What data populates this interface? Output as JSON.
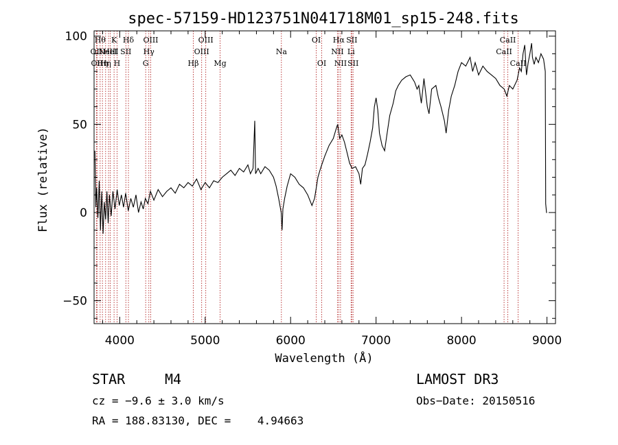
{
  "chart_data": {
    "type": "line",
    "title": "spec-57159-HD123751N041718M01_sp15-248.fits",
    "xlabel": "Wavelength (Å)",
    "ylabel": "Flux (relative)",
    "xlim": [
      3700,
      9100
    ],
    "ylim": [
      -63,
      103
    ],
    "xticks": [
      4000,
      5000,
      6000,
      7000,
      8000,
      9000
    ],
    "xtick_labels": [
      "4000",
      "5000",
      "6000",
      "7000",
      "8000",
      "9000"
    ],
    "yticks": [
      -50,
      0,
      50,
      100
    ],
    "ytick_labels": [
      "−50",
      "0",
      "50",
      "100"
    ],
    "grid": false,
    "series": [
      {
        "name": "flux",
        "color": "#000000",
        "points": [
          [
            3710,
            35
          ],
          [
            3720,
            3
          ],
          [
            3730,
            14
          ],
          [
            3745,
            -3
          ],
          [
            3760,
            18
          ],
          [
            3775,
            -10
          ],
          [
            3790,
            12
          ],
          [
            3805,
            -12
          ],
          [
            3820,
            6
          ],
          [
            3835,
            -4
          ],
          [
            3850,
            12
          ],
          [
            3865,
            -6
          ],
          [
            3880,
            10
          ],
          [
            3900,
            -2
          ],
          [
            3920,
            12
          ],
          [
            3945,
            2
          ],
          [
            3970,
            13
          ],
          [
            3995,
            4
          ],
          [
            4020,
            10
          ],
          [
            4045,
            3
          ],
          [
            4070,
            11
          ],
          [
            4100,
            1
          ],
          [
            4130,
            8
          ],
          [
            4160,
            3
          ],
          [
            4190,
            10
          ],
          [
            4220,
            0
          ],
          [
            4250,
            6
          ],
          [
            4275,
            2
          ],
          [
            4300,
            8
          ],
          [
            4330,
            5
          ],
          [
            4360,
            12
          ],
          [
            4400,
            7
          ],
          [
            4450,
            13
          ],
          [
            4500,
            9
          ],
          [
            4550,
            12
          ],
          [
            4600,
            14
          ],
          [
            4650,
            11
          ],
          [
            4700,
            16
          ],
          [
            4750,
            14
          ],
          [
            4800,
            17
          ],
          [
            4850,
            15
          ],
          [
            4900,
            19
          ],
          [
            4950,
            13
          ],
          [
            5000,
            17
          ],
          [
            5050,
            14
          ],
          [
            5100,
            18
          ],
          [
            5150,
            17
          ],
          [
            5200,
            20
          ],
          [
            5250,
            22
          ],
          [
            5300,
            24
          ],
          [
            5350,
            21
          ],
          [
            5400,
            25
          ],
          [
            5450,
            23
          ],
          [
            5500,
            27
          ],
          [
            5530,
            22
          ],
          [
            5560,
            25
          ],
          [
            5580,
            52
          ],
          [
            5590,
            22
          ],
          [
            5620,
            25
          ],
          [
            5650,
            22
          ],
          [
            5700,
            26
          ],
          [
            5750,
            24
          ],
          [
            5800,
            20
          ],
          [
            5830,
            15
          ],
          [
            5860,
            8
          ],
          [
            5890,
            0
          ],
          [
            5900,
            -10
          ],
          [
            5910,
            2
          ],
          [
            5930,
            8
          ],
          [
            5960,
            15
          ],
          [
            6000,
            22
          ],
          [
            6050,
            20
          ],
          [
            6100,
            16
          ],
          [
            6150,
            14
          ],
          [
            6200,
            10
          ],
          [
            6250,
            4
          ],
          [
            6280,
            8
          ],
          [
            6300,
            14
          ],
          [
            6320,
            20
          ],
          [
            6350,
            25
          ],
          [
            6400,
            32
          ],
          [
            6450,
            38
          ],
          [
            6500,
            42
          ],
          [
            6530,
            47
          ],
          [
            6550,
            50
          ],
          [
            6575,
            42
          ],
          [
            6600,
            44
          ],
          [
            6630,
            40
          ],
          [
            6660,
            34
          ],
          [
            6690,
            28
          ],
          [
            6720,
            25
          ],
          [
            6760,
            26
          ],
          [
            6800,
            22
          ],
          [
            6820,
            16
          ],
          [
            6840,
            25
          ],
          [
            6870,
            27
          ],
          [
            6900,
            33
          ],
          [
            6930,
            40
          ],
          [
            6960,
            48
          ],
          [
            6980,
            60
          ],
          [
            7000,
            65
          ],
          [
            7020,
            58
          ],
          [
            7040,
            45
          ],
          [
            7070,
            38
          ],
          [
            7100,
            35
          ],
          [
            7130,
            45
          ],
          [
            7160,
            55
          ],
          [
            7200,
            62
          ],
          [
            7230,
            69
          ],
          [
            7260,
            72
          ],
          [
            7300,
            75
          ],
          [
            7350,
            77
          ],
          [
            7400,
            78
          ],
          [
            7450,
            74
          ],
          [
            7480,
            70
          ],
          [
            7500,
            72
          ],
          [
            7530,
            62
          ],
          [
            7560,
            76
          ],
          [
            7600,
            60
          ],
          [
            7620,
            56
          ],
          [
            7650,
            70
          ],
          [
            7700,
            72
          ],
          [
            7730,
            65
          ],
          [
            7760,
            60
          ],
          [
            7800,
            52
          ],
          [
            7820,
            45
          ],
          [
            7850,
            58
          ],
          [
            7880,
            66
          ],
          [
            7920,
            72
          ],
          [
            7960,
            80
          ],
          [
            8000,
            85
          ],
          [
            8050,
            83
          ],
          [
            8100,
            88
          ],
          [
            8130,
            80
          ],
          [
            8160,
            85
          ],
          [
            8200,
            78
          ],
          [
            8250,
            83
          ],
          [
            8300,
            80
          ],
          [
            8350,
            78
          ],
          [
            8400,
            76
          ],
          [
            8450,
            72
          ],
          [
            8500,
            70
          ],
          [
            8530,
            66
          ],
          [
            8560,
            72
          ],
          [
            8600,
            70
          ],
          [
            8650,
            75
          ],
          [
            8680,
            82
          ],
          [
            8700,
            80
          ],
          [
            8720,
            90
          ],
          [
            8740,
            95
          ],
          [
            8760,
            78
          ],
          [
            8780,
            85
          ],
          [
            8800,
            90
          ],
          [
            8820,
            96
          ],
          [
            8830,
            88
          ],
          [
            8850,
            84
          ],
          [
            8870,
            88
          ],
          [
            8900,
            85
          ],
          [
            8930,
            90
          ],
          [
            8960,
            87
          ],
          [
            8980,
            80
          ],
          [
            8985,
            5
          ],
          [
            8995,
            0
          ],
          [
            9000,
            0
          ]
        ]
      }
    ],
    "line_markers": [
      {
        "wave": 3727,
        "label": "OII",
        "row": 2
      },
      {
        "wave": 3735,
        "label": "OII",
        "row": 3
      },
      {
        "wave": 3771,
        "label": "Hθ",
        "row": 1
      },
      {
        "wave": 3798,
        "label": "Hη",
        "row": 3
      },
      {
        "wave": 3835,
        "label": "Hη",
        "row": 3
      },
      {
        "wave": 3869,
        "label": "NeIII",
        "row": 2
      },
      {
        "wave": 3889,
        "label": "HeI",
        "row": 2
      },
      {
        "wave": 3934,
        "label": "K",
        "row": 1
      },
      {
        "wave": 3969,
        "label": "H",
        "row": 3
      },
      {
        "wave": 4072,
        "label": "SII",
        "row": 2
      },
      {
        "wave": 4102,
        "label": "Hδ",
        "row": 1
      },
      {
        "wave": 4304,
        "label": "G",
        "row": 3
      },
      {
        "wave": 4341,
        "label": "Hγ",
        "row": 2
      },
      {
        "wave": 4363,
        "label": "OIII",
        "row": 1
      },
      {
        "wave": 4861,
        "label": "Hβ",
        "row": 3
      },
      {
        "wave": 4959,
        "label": "OIII",
        "row": 2
      },
      {
        "wave": 5007,
        "label": "OIII",
        "row": 1
      },
      {
        "wave": 5175,
        "label": "Mg",
        "row": 3
      },
      {
        "wave": 5892,
        "label": "Na",
        "row": 2
      },
      {
        "wave": 6300,
        "label": "OI",
        "row": 1
      },
      {
        "wave": 6364,
        "label": "OI",
        "row": 3
      },
      {
        "wave": 6548,
        "label": "NII",
        "row": 2
      },
      {
        "wave": 6563,
        "label": "Hα",
        "row": 1
      },
      {
        "wave": 6584,
        "label": "NII",
        "row": 3
      },
      {
        "wave": 6708,
        "label": "Li",
        "row": 2
      },
      {
        "wave": 6716,
        "label": "SII",
        "row": 1
      },
      {
        "wave": 6731,
        "label": "SII",
        "row": 3
      },
      {
        "wave": 8498,
        "label": "CaII",
        "row": 2
      },
      {
        "wave": 8542,
        "label": "CaII",
        "row": 1
      },
      {
        "wave": 8662,
        "label": "CaII",
        "row": 3
      }
    ],
    "marker_color": "#b22222"
  },
  "info": {
    "object_class": "STAR",
    "subclass": "M4",
    "survey": "LAMOST DR3",
    "redshift": "cz = −9.6 ± 3.0 km/s",
    "obs_date": "Obs−Date: 20150516",
    "coords": "RA = 188.83130, DEC =    4.94663"
  }
}
